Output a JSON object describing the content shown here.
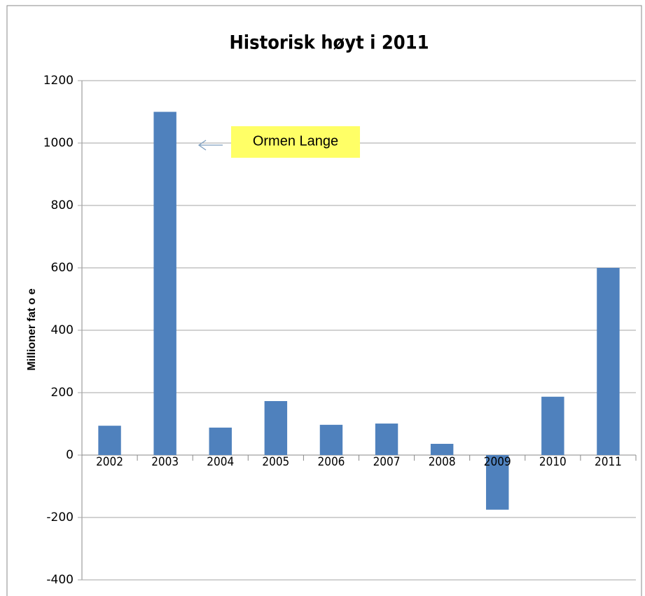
{
  "chart_data": {
    "type": "bar",
    "title": "Historisk høyt i 2011",
    "y_label": "Millioner fat o e",
    "annotation": "Ormen Lange",
    "categories": [
      "2002",
      "2003",
      "2004",
      "2005",
      "2006",
      "2007",
      "2008",
      "2009",
      "2010",
      "2011"
    ],
    "values": [
      94,
      1100,
      88,
      173,
      97,
      101,
      36,
      -175,
      187,
      600
    ],
    "color": "#4f81bd",
    "ylim": [
      -400,
      1200
    ],
    "yticks": [
      -400,
      -200,
      0,
      200,
      400,
      600,
      800,
      1000,
      1200
    ],
    "grid": true
  }
}
